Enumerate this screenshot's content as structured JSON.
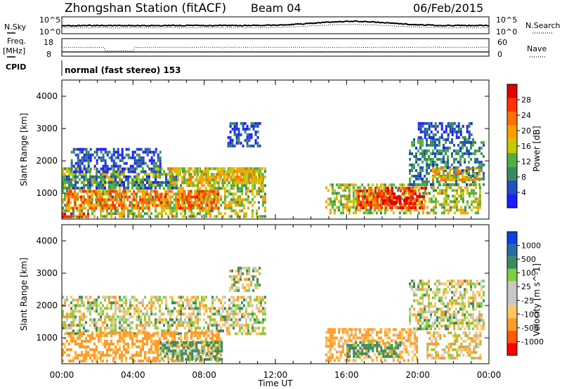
{
  "header": {
    "station": "Zhongshan Station (fitACF)",
    "beam": "Beam 04",
    "date": "06/Feb/2015"
  },
  "top_panels": {
    "nsky_label": "N.Sky",
    "nsearch_label": "N.Search",
    "nsky_ticks": [
      "10^5",
      "10^0"
    ],
    "freq_label": "Freq.",
    "freq_unit": "[MHz]",
    "freq_ticks": [
      "18",
      "8"
    ],
    "nave_label": "Nave",
    "nave_ticks": [
      "60",
      "0"
    ],
    "cpid_label": "CPID",
    "cpid_value": "normal (fast stereo) 153"
  },
  "colors": {
    "power": [
      "#1d1dff",
      "#2050c0",
      "#3a8a60",
      "#50b040",
      "#c8c800",
      "#ffa000",
      "#ff7000",
      "#ff3000",
      "#e00000"
    ],
    "velocity": [
      "#ff0000",
      "#ff5a00",
      "#ff9c28",
      "#ffc860",
      "#c8c8c8",
      "#c8c8c8",
      "#7ed040",
      "#3a8a60",
      "#2a6aa8",
      "#1040e0"
    ]
  },
  "chart_data": [
    {
      "type": "heatmap",
      "name": "power",
      "ylabel": "Slant Range [km]",
      "ylim": [
        200,
        4500
      ],
      "y_ticks": [
        1000,
        2000,
        3000,
        4000
      ],
      "x_ticks": [
        "00:00",
        "04:00",
        "08:00",
        "12:00",
        "16:00",
        "20:00",
        "00:00"
      ],
      "xlabel": "Time UT",
      "colorbar_label": "Power [dB]",
      "colorbar_ticks": [
        "28",
        "24",
        "20",
        "16",
        "12",
        "8",
        "4"
      ],
      "vmin": 0,
      "vmax": 30,
      "regions": [
        {
          "t0": 0.0,
          "t1": 11.4,
          "r0": 250,
          "r1": 1800,
          "v": 14
        },
        {
          "t0": 0.2,
          "t1": 8.8,
          "r0": 550,
          "r1": 1100,
          "v": 22
        },
        {
          "t0": 0.0,
          "t1": 6.5,
          "r0": 1150,
          "r1": 1550,
          "v": 7
        },
        {
          "t0": 6.0,
          "t1": 11.3,
          "r0": 1300,
          "r1": 1800,
          "v": 16
        },
        {
          "t0": 9.4,
          "t1": 11.2,
          "r0": 1450,
          "r1": 1800,
          "v": 18
        },
        {
          "t0": 0.0,
          "t1": 1.5,
          "r0": 250,
          "r1": 400,
          "v": 24
        },
        {
          "t0": 0.5,
          "t1": 5.5,
          "r0": 1700,
          "r1": 2400,
          "v": 5
        },
        {
          "t0": 9.3,
          "t1": 11.1,
          "r0": 2500,
          "r1": 3200,
          "v": 4
        },
        {
          "t0": 14.8,
          "t1": 23.5,
          "r0": 350,
          "r1": 1300,
          "v": 14
        },
        {
          "t0": 16.5,
          "t1": 20.5,
          "r0": 550,
          "r1": 1200,
          "v": 24
        },
        {
          "t0": 18.0,
          "t1": 20.0,
          "r0": 650,
          "r1": 900,
          "v": 28
        },
        {
          "t0": 19.5,
          "t1": 23.7,
          "r0": 1300,
          "r1": 2700,
          "v": 8
        },
        {
          "t0": 20.8,
          "t1": 23.5,
          "r0": 1450,
          "r1": 1800,
          "v": 18
        },
        {
          "t0": 20.0,
          "t1": 23.0,
          "r0": 2700,
          "r1": 3200,
          "v": 4
        }
      ]
    },
    {
      "type": "heatmap",
      "name": "velocity",
      "ylabel": "Slant Range [km]",
      "ylim": [
        200,
        4500
      ],
      "y_ticks": [
        1000,
        2000,
        3000,
        4000
      ],
      "x_ticks": [
        "00:00",
        "04:00",
        "08:00",
        "12:00",
        "16:00",
        "20:00",
        "00:00"
      ],
      "xlabel": "Time UT",
      "colorbar_label": "Velocity [m s^-1]",
      "colorbar_ticks": [
        "1000",
        "500",
        "100",
        "25",
        "-25",
        "-100",
        "-500",
        "-1000"
      ],
      "vmin": -1200,
      "vmax": 1200,
      "regions": [
        {
          "t0": 0.0,
          "t1": 11.4,
          "r0": 1150,
          "r1": 2300,
          "v": 0
        },
        {
          "t0": 0.0,
          "t1": 9.0,
          "r0": 250,
          "r1": 1200,
          "v": -200
        },
        {
          "t0": 5.5,
          "t1": 9.0,
          "r0": 300,
          "r1": 900,
          "v": 150
        },
        {
          "t0": 9.4,
          "t1": 11.1,
          "r0": 2500,
          "r1": 3200,
          "v": 0
        },
        {
          "t0": 14.8,
          "t1": 20.0,
          "r0": 300,
          "r1": 1300,
          "v": -150
        },
        {
          "t0": 16.0,
          "t1": 19.0,
          "r0": 400,
          "r1": 900,
          "v": 200
        },
        {
          "t0": 19.5,
          "t1": 23.7,
          "r0": 1300,
          "r1": 2800,
          "v": 0
        },
        {
          "t0": 20.5,
          "t1": 23.5,
          "r0": 400,
          "r1": 1200,
          "v": -80
        }
      ]
    }
  ]
}
